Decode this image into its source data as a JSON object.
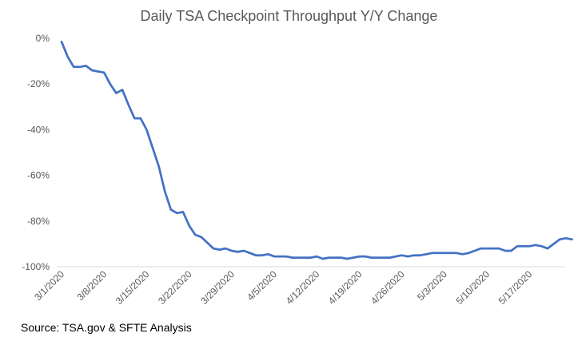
{
  "chart_data": {
    "type": "line",
    "title": "Daily TSA Checkpoint Throughput Y/Y Change",
    "xlabel": "",
    "ylabel": "",
    "ylim": [
      -100,
      0
    ],
    "yticks": [
      0,
      -20,
      -40,
      -60,
      -80,
      -100
    ],
    "ytick_labels": [
      "0%",
      "-20%",
      "-40%",
      "-60%",
      "-80%",
      "-100%"
    ],
    "xtick_labels": [
      "3/1/2020",
      "3/8/2020",
      "3/15/2020",
      "3/22/2020",
      "3/29/2020",
      "4/5/2020",
      "4/12/2020",
      "4/19/2020",
      "4/26/2020",
      "5/3/2020",
      "5/10/2020",
      "5/17/2020"
    ],
    "grid": false,
    "legend": "none",
    "line_color": "#4472C4",
    "series": [
      {
        "x": [
          "3/1/2020",
          "3/2/2020",
          "3/3/2020",
          "3/4/2020",
          "3/5/2020",
          "3/6/2020",
          "3/7/2020",
          "3/8/2020",
          "3/9/2020",
          "3/10/2020",
          "3/11/2020",
          "3/12/2020",
          "3/13/2020",
          "3/14/2020",
          "3/15/2020",
          "3/16/2020",
          "3/17/2020",
          "3/18/2020",
          "3/19/2020",
          "3/20/2020",
          "3/21/2020",
          "3/22/2020",
          "3/23/2020",
          "3/24/2020",
          "3/25/2020",
          "3/26/2020",
          "3/27/2020",
          "3/28/2020",
          "3/29/2020",
          "3/30/2020",
          "3/31/2020",
          "4/1/2020",
          "4/2/2020",
          "4/3/2020",
          "4/4/2020",
          "4/5/2020",
          "4/6/2020",
          "4/7/2020",
          "4/8/2020",
          "4/9/2020",
          "4/10/2020",
          "4/11/2020",
          "4/12/2020",
          "4/13/2020",
          "4/14/2020",
          "4/15/2020",
          "4/16/2020",
          "4/17/2020",
          "4/18/2020",
          "4/19/2020",
          "4/20/2020",
          "4/21/2020",
          "4/22/2020",
          "4/23/2020",
          "4/24/2020",
          "4/25/2020",
          "4/26/2020",
          "4/27/2020",
          "4/28/2020",
          "4/29/2020",
          "4/30/2020",
          "5/1/2020",
          "5/2/2020",
          "5/3/2020",
          "5/4/2020",
          "5/5/2020",
          "5/6/2020",
          "5/7/2020",
          "5/8/2020",
          "5/9/2020",
          "5/10/2020",
          "5/11/2020",
          "5/12/2020",
          "5/13/2020",
          "5/14/2020",
          "5/15/2020",
          "5/16/2020",
          "5/17/2020",
          "5/18/2020",
          "5/19/2020",
          "5/20/2020",
          "5/21/2020",
          "5/22/2020",
          "5/23/2020",
          "5/24/2020"
        ],
        "values": [
          -1.5,
          -8,
          -12.5,
          -12.5,
          -12,
          -14,
          -14.5,
          -15,
          -20,
          -24,
          -22.5,
          -29,
          -35,
          -35,
          -40,
          -48,
          -56,
          -67,
          -75,
          -76.5,
          -76,
          -82,
          -86,
          -87,
          -89.5,
          -92,
          -92.5,
          -92,
          -93,
          -93.5,
          -93,
          -94,
          -95,
          -95,
          -94.5,
          -95.5,
          -95.5,
          -95.5,
          -96,
          -96,
          -96,
          -96,
          -95.5,
          -96.5,
          -96,
          -96,
          -96,
          -96.5,
          -96,
          -95.5,
          -95.5,
          -96,
          -96,
          -96,
          -96,
          -95.5,
          -95,
          -95.5,
          -95,
          -95,
          -94.5,
          -94,
          -94,
          -94,
          -94,
          -94,
          -94.5,
          -94,
          -93,
          -92,
          -92,
          -92,
          -92,
          -93,
          -93,
          -91,
          -91,
          -91,
          -90.5,
          -91,
          -92,
          -90,
          -88,
          -87.5,
          -88
        ]
      }
    ]
  },
  "source_note": "Source: TSA.gov & SFTE Analysis"
}
